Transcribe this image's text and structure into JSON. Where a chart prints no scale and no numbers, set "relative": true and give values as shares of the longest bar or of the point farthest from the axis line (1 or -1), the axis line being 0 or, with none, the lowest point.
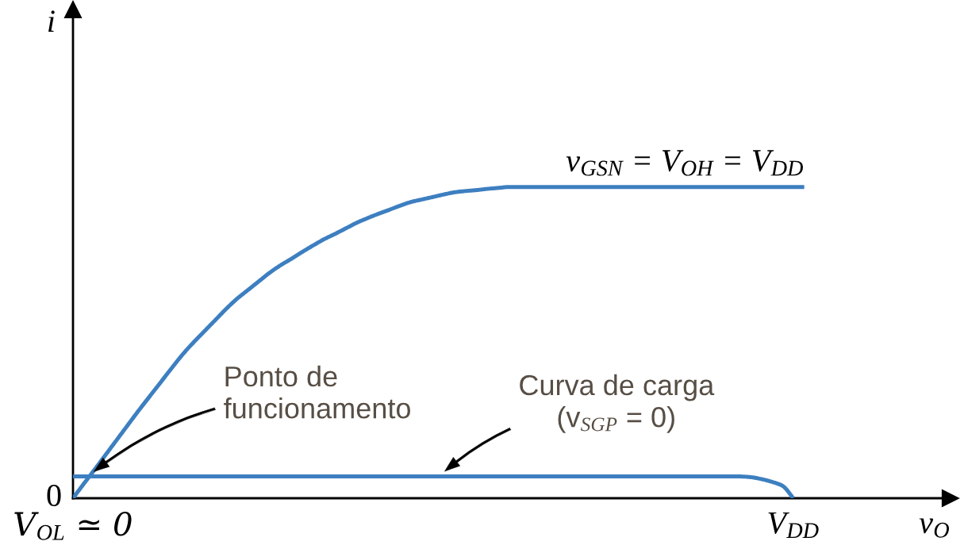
{
  "chart_data": {
    "type": "line",
    "relative": true,
    "xlabel": "v$_{O}$",
    "ylabel": "i",
    "categories": [
      "V$_{OL}$ ≃ 0",
      null,
      null,
      null,
      null,
      null,
      null,
      null,
      null,
      null,
      null,
      null,
      null,
      null,
      null,
      null,
      null,
      null,
      null,
      null,
      null,
      null,
      null,
      null,
      null,
      null,
      null,
      null,
      null,
      null,
      null,
      null,
      null,
      null,
      null,
      null,
      null,
      null,
      null,
      null,
      null,
      null,
      null,
      null,
      null,
      null,
      null,
      null,
      null,
      null,
      null,
      null,
      null,
      null,
      null,
      null,
      null,
      null,
      null,
      null,
      null,
      null,
      null,
      null,
      null,
      null,
      "V$_{DD}$",
      null
    ],
    "series": [
      {
        "name": "v$_{GSN}$ = V$_{OH}$ = V$_{DD}$",
        "color": "#3d7fc0",
        "values": [
          0,
          0.047,
          0.093,
          0.14,
          0.187,
          0.234,
          0.281,
          0.326,
          0.371,
          0.416,
          0.46,
          0.499,
          0.535,
          0.571,
          0.607,
          0.64,
          0.668,
          0.696,
          0.724,
          0.748,
          0.769,
          0.791,
          0.812,
          0.832,
          0.849,
          0.867,
          0.885,
          0.9,
          0.914,
          0.927,
          0.94,
          0.952,
          0.96,
          0.968,
          0.976,
          0.983,
          0.987,
          0.99,
          0.994,
          0.997,
          1,
          1,
          1,
          1,
          1,
          1,
          1,
          1,
          1,
          1,
          1,
          1,
          1,
          1,
          1,
          1,
          1,
          1,
          1,
          1,
          1,
          1,
          1,
          1,
          1,
          1,
          1,
          1
        ]
      },
      {
        "color": "#3d7fc0",
        "values": [
          0.07,
          0.07,
          0.07,
          0.07,
          0.07,
          0.07,
          0.07,
          0.07,
          0.07,
          0.07,
          0.07,
          0.07,
          0.07,
          0.07,
          0.07,
          0.07,
          0.07,
          0.07,
          0.07,
          0.07,
          0.07,
          0.07,
          0.07,
          0.07,
          0.07,
          0.07,
          0.07,
          0.07,
          0.07,
          0.07,
          0.07,
          0.07,
          0.07,
          0.07,
          0.07,
          0.07,
          0.07,
          0.07,
          0.07,
          0.07,
          0.07,
          0.07,
          0.07,
          0.07,
          0.07,
          0.07,
          0.07,
          0.07,
          0.07,
          0.07,
          0.07,
          0.07,
          0.07,
          0.07,
          0.07,
          0.07,
          0.07,
          0.07,
          0.07,
          0.07,
          0.07,
          0.07,
          0.068,
          0.062,
          0.053,
          0.04,
          0,
          null
        ]
      }
    ],
    "annotations": [
      "0",
      {
        "text": "Ponto de\nfuncionamento",
        "y": 0.07
      },
      {
        "text": "Curva de carga\n(v$_{SGP}$ = 0)",
        "y": 0.07
      }
    ]
  }
}
